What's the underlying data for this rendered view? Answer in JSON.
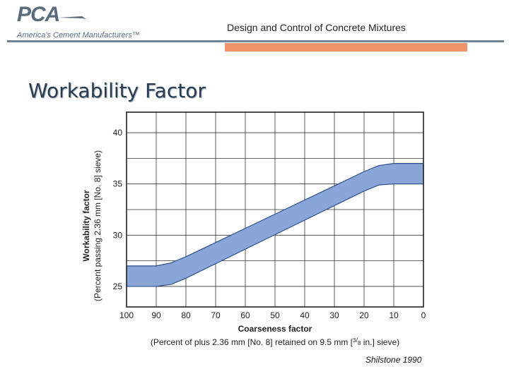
{
  "header": {
    "logo_word": "PCA",
    "logo_tagline": "America's Cement Manufacturers™",
    "title": "Design and Control of Concrete Mixtures",
    "colors": {
      "rule": "#6e8599",
      "accent_bar": "#f0956a"
    }
  },
  "slide_title": "Workability Factor",
  "credit": "Shilstone 1990",
  "chart_data": {
    "type": "area",
    "title": "",
    "xlabel": "Coarseness factor",
    "xlabel_sub": "(Percent of plus 2.36 mm [No. 8] retained on 9.5 mm [3/8 in.] sieve)",
    "ylabel": "Workability factor",
    "ylabel_sub": "(Percent passing 2.36 mm [No. 8] sieve)",
    "xlim": [
      100,
      0
    ],
    "ylim": [
      23,
      42
    ],
    "x_ticks": [
      100,
      90,
      80,
      70,
      60,
      50,
      40,
      30,
      20,
      10,
      0
    ],
    "y_ticks": [
      25,
      30,
      35,
      40
    ],
    "grid": true,
    "band_color": "#8aa6d8",
    "band_edge_color": "#2d4f8c",
    "series": [
      {
        "x": [
          100,
          90,
          85,
          80,
          20,
          15,
          10,
          0
        ],
        "upper": [
          27.0,
          27.0,
          27.3,
          27.9,
          36.2,
          36.8,
          37.0,
          37.0
        ],
        "lower": [
          25.0,
          25.0,
          25.2,
          25.8,
          34.3,
          34.9,
          35.0,
          35.0
        ]
      }
    ]
  }
}
